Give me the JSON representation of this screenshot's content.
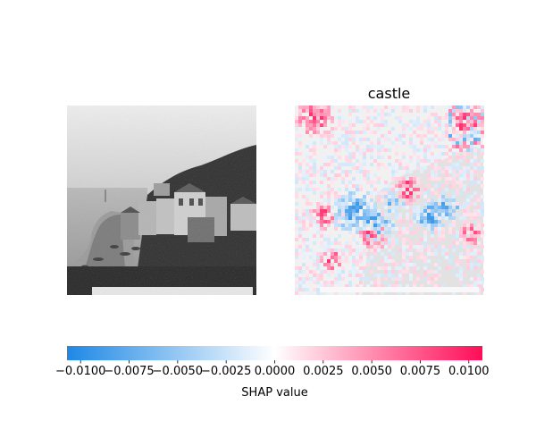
{
  "figure": {
    "panels": [
      {
        "title": "",
        "content": "input-photo-grayscale"
      },
      {
        "title": "castle",
        "content": "shap-heatmap-overlay"
      }
    ]
  },
  "colorbar": {
    "label": "SHAP value",
    "colormap": [
      "#1e88e5",
      "#ffffff",
      "#ff0d57"
    ]
  },
  "chart_data": {
    "type": "heatmap",
    "title": "castle",
    "xlabel": "",
    "ylabel": "",
    "value_range": [
      -0.0107,
      0.0107
    ],
    "colorbar_ticks": [
      -0.01,
      -0.0075,
      -0.005,
      -0.0025,
      0.0,
      0.0025,
      0.005,
      0.0075,
      0.01
    ],
    "colorbar_tick_labels": [
      "−0.0100",
      "−0.0075",
      "−0.0050",
      "−0.0025",
      "0.0000",
      "0.0025",
      "0.0050",
      "0.0075",
      "0.0100"
    ],
    "colorbar_label": "SHAP value",
    "colors": {
      "negative": "#1e88e5",
      "zero": "#ffffff",
      "positive": "#ff0d57"
    }
  }
}
